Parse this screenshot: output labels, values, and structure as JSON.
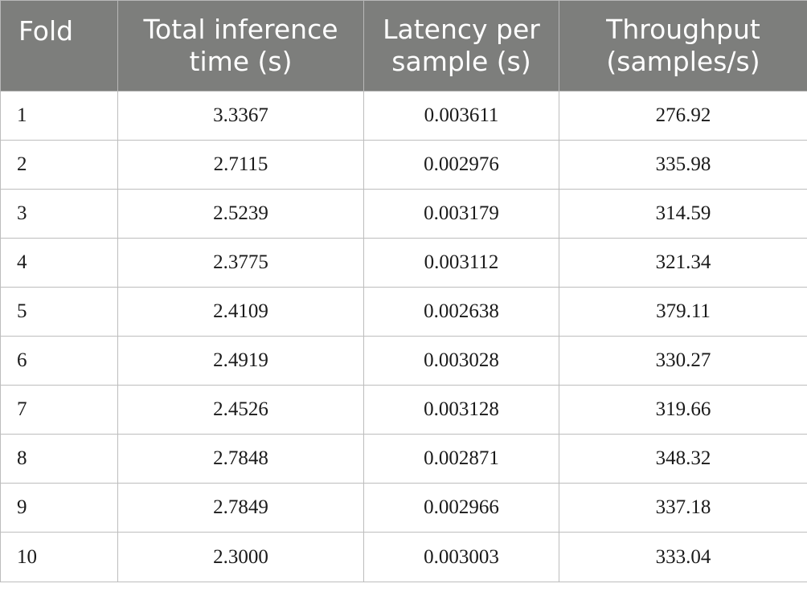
{
  "table": {
    "headers": [
      "Fold",
      "Total inference time (s)",
      "Latency per sample (s)",
      "Throughput (samples/s)"
    ],
    "rows": [
      {
        "fold": "1",
        "total_time": "3.3367",
        "latency": "0.003611",
        "throughput": "276.92"
      },
      {
        "fold": "2",
        "total_time": "2.7115",
        "latency": "0.002976",
        "throughput": "335.98"
      },
      {
        "fold": "3",
        "total_time": "2.5239",
        "latency": "0.003179",
        "throughput": "314.59"
      },
      {
        "fold": "4",
        "total_time": "2.3775",
        "latency": "0.003112",
        "throughput": "321.34"
      },
      {
        "fold": "5",
        "total_time": "2.4109",
        "latency": "0.002638",
        "throughput": "379.11"
      },
      {
        "fold": "6",
        "total_time": "2.4919",
        "latency": "0.003028",
        "throughput": "330.27"
      },
      {
        "fold": "7",
        "total_time": "2.4526",
        "latency": "0.003128",
        "throughput": "319.66"
      },
      {
        "fold": "8",
        "total_time": "2.7848",
        "latency": "0.002871",
        "throughput": "348.32"
      },
      {
        "fold": "9",
        "total_time": "2.7849",
        "latency": "0.002966",
        "throughput": "337.18"
      },
      {
        "fold": "10",
        "total_time": "2.3000",
        "latency": "0.003003",
        "throughput": "333.04"
      }
    ]
  },
  "colors": {
    "header_background": "#7d7e7c",
    "header_text": "#ffffff",
    "grid_lines": "#bdbdbd"
  }
}
